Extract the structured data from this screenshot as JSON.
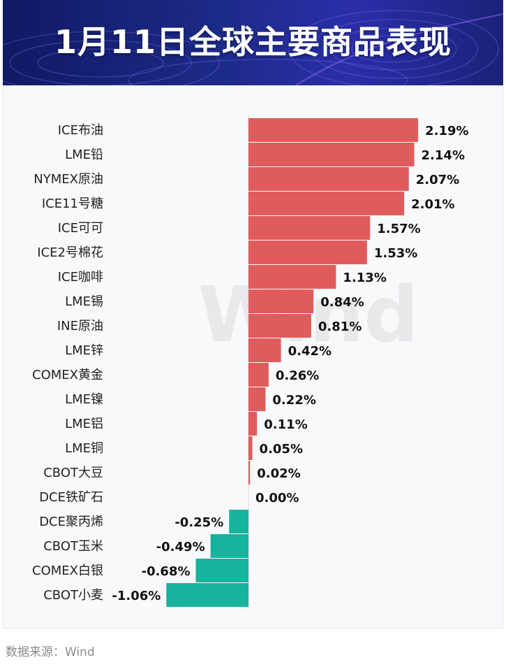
{
  "header": {
    "title": "1月11日全球主要商品表现"
  },
  "footer": {
    "source": "数据来源：Wind"
  },
  "watermark": "Wind",
  "colors": {
    "positive": "#e05c5c",
    "negative": "#16b39d",
    "label": "#111111",
    "banner": "#1d2b8a"
  },
  "chart_data": {
    "type": "bar",
    "orientation": "horizontal",
    "categories": [
      "ICE布油",
      "LME铅",
      "NYMEX原油",
      "ICE11号糖",
      "ICE可可",
      "ICE2号棉花",
      "ICE咖啡",
      "LME锡",
      "INE原油",
      "LME锌",
      "COMEX黄金",
      "LME镍",
      "LME铝",
      "LME铜",
      "CBOT大豆",
      "DCE铁矿石",
      "DCE聚丙烯",
      "CBOT玉米",
      "COMEX白银",
      "CBOT小麦"
    ],
    "values": [
      2.19,
      2.14,
      2.07,
      2.01,
      1.57,
      1.53,
      1.13,
      0.84,
      0.81,
      0.42,
      0.26,
      0.22,
      0.11,
      0.05,
      0.02,
      0.0,
      -0.25,
      -0.49,
      -0.68,
      -1.06
    ],
    "value_labels": [
      "2.19%",
      "2.14%",
      "2.07%",
      "2.01%",
      "1.57%",
      "1.53%",
      "1.13%",
      "0.84%",
      "0.81%",
      "0.42%",
      "0.26%",
      "0.22%",
      "0.11%",
      "0.05%",
      "0.02%",
      "0.00%",
      "-0.25%",
      "-0.49%",
      "-0.68%",
      "-1.06%"
    ],
    "unit": "%",
    "grid": false,
    "legend": "none"
  }
}
